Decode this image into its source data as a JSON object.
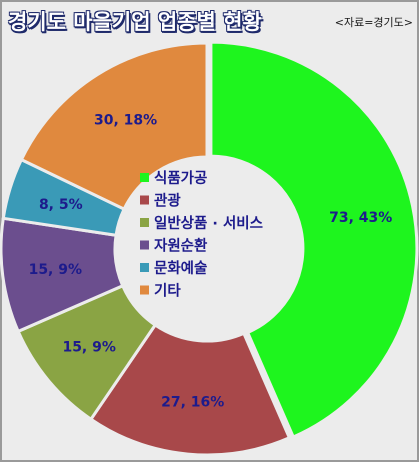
{
  "header": {
    "title": "경기도 마을기업 업종별 현황",
    "source": "<자료=경기도>"
  },
  "chart_data": {
    "type": "pie",
    "style": "donut",
    "legend_position": "center",
    "slices": [
      {
        "name": "식품가공",
        "value": 73,
        "percent": 43,
        "label": "73, 43%",
        "color": "#1ef51e"
      },
      {
        "name": "관광",
        "value": 27,
        "percent": 16,
        "label": "27, 16%",
        "color": "#a8484a"
      },
      {
        "name": "일반상품 · 서비스",
        "value": 15,
        "percent": 9,
        "label": "15, 9%",
        "color": "#8aa444"
      },
      {
        "name": "자원순환",
        "value": 15,
        "percent": 9,
        "label": "15, 9%",
        "color": "#6b4e8e"
      },
      {
        "name": "문화예술",
        "value": 8,
        "percent": 5,
        "label": "8, 5%",
        "color": "#3a9ab7"
      },
      {
        "name": "기타",
        "value": 30,
        "percent": 18,
        "label": "30, 18%",
        "color": "#e0893e"
      }
    ]
  }
}
